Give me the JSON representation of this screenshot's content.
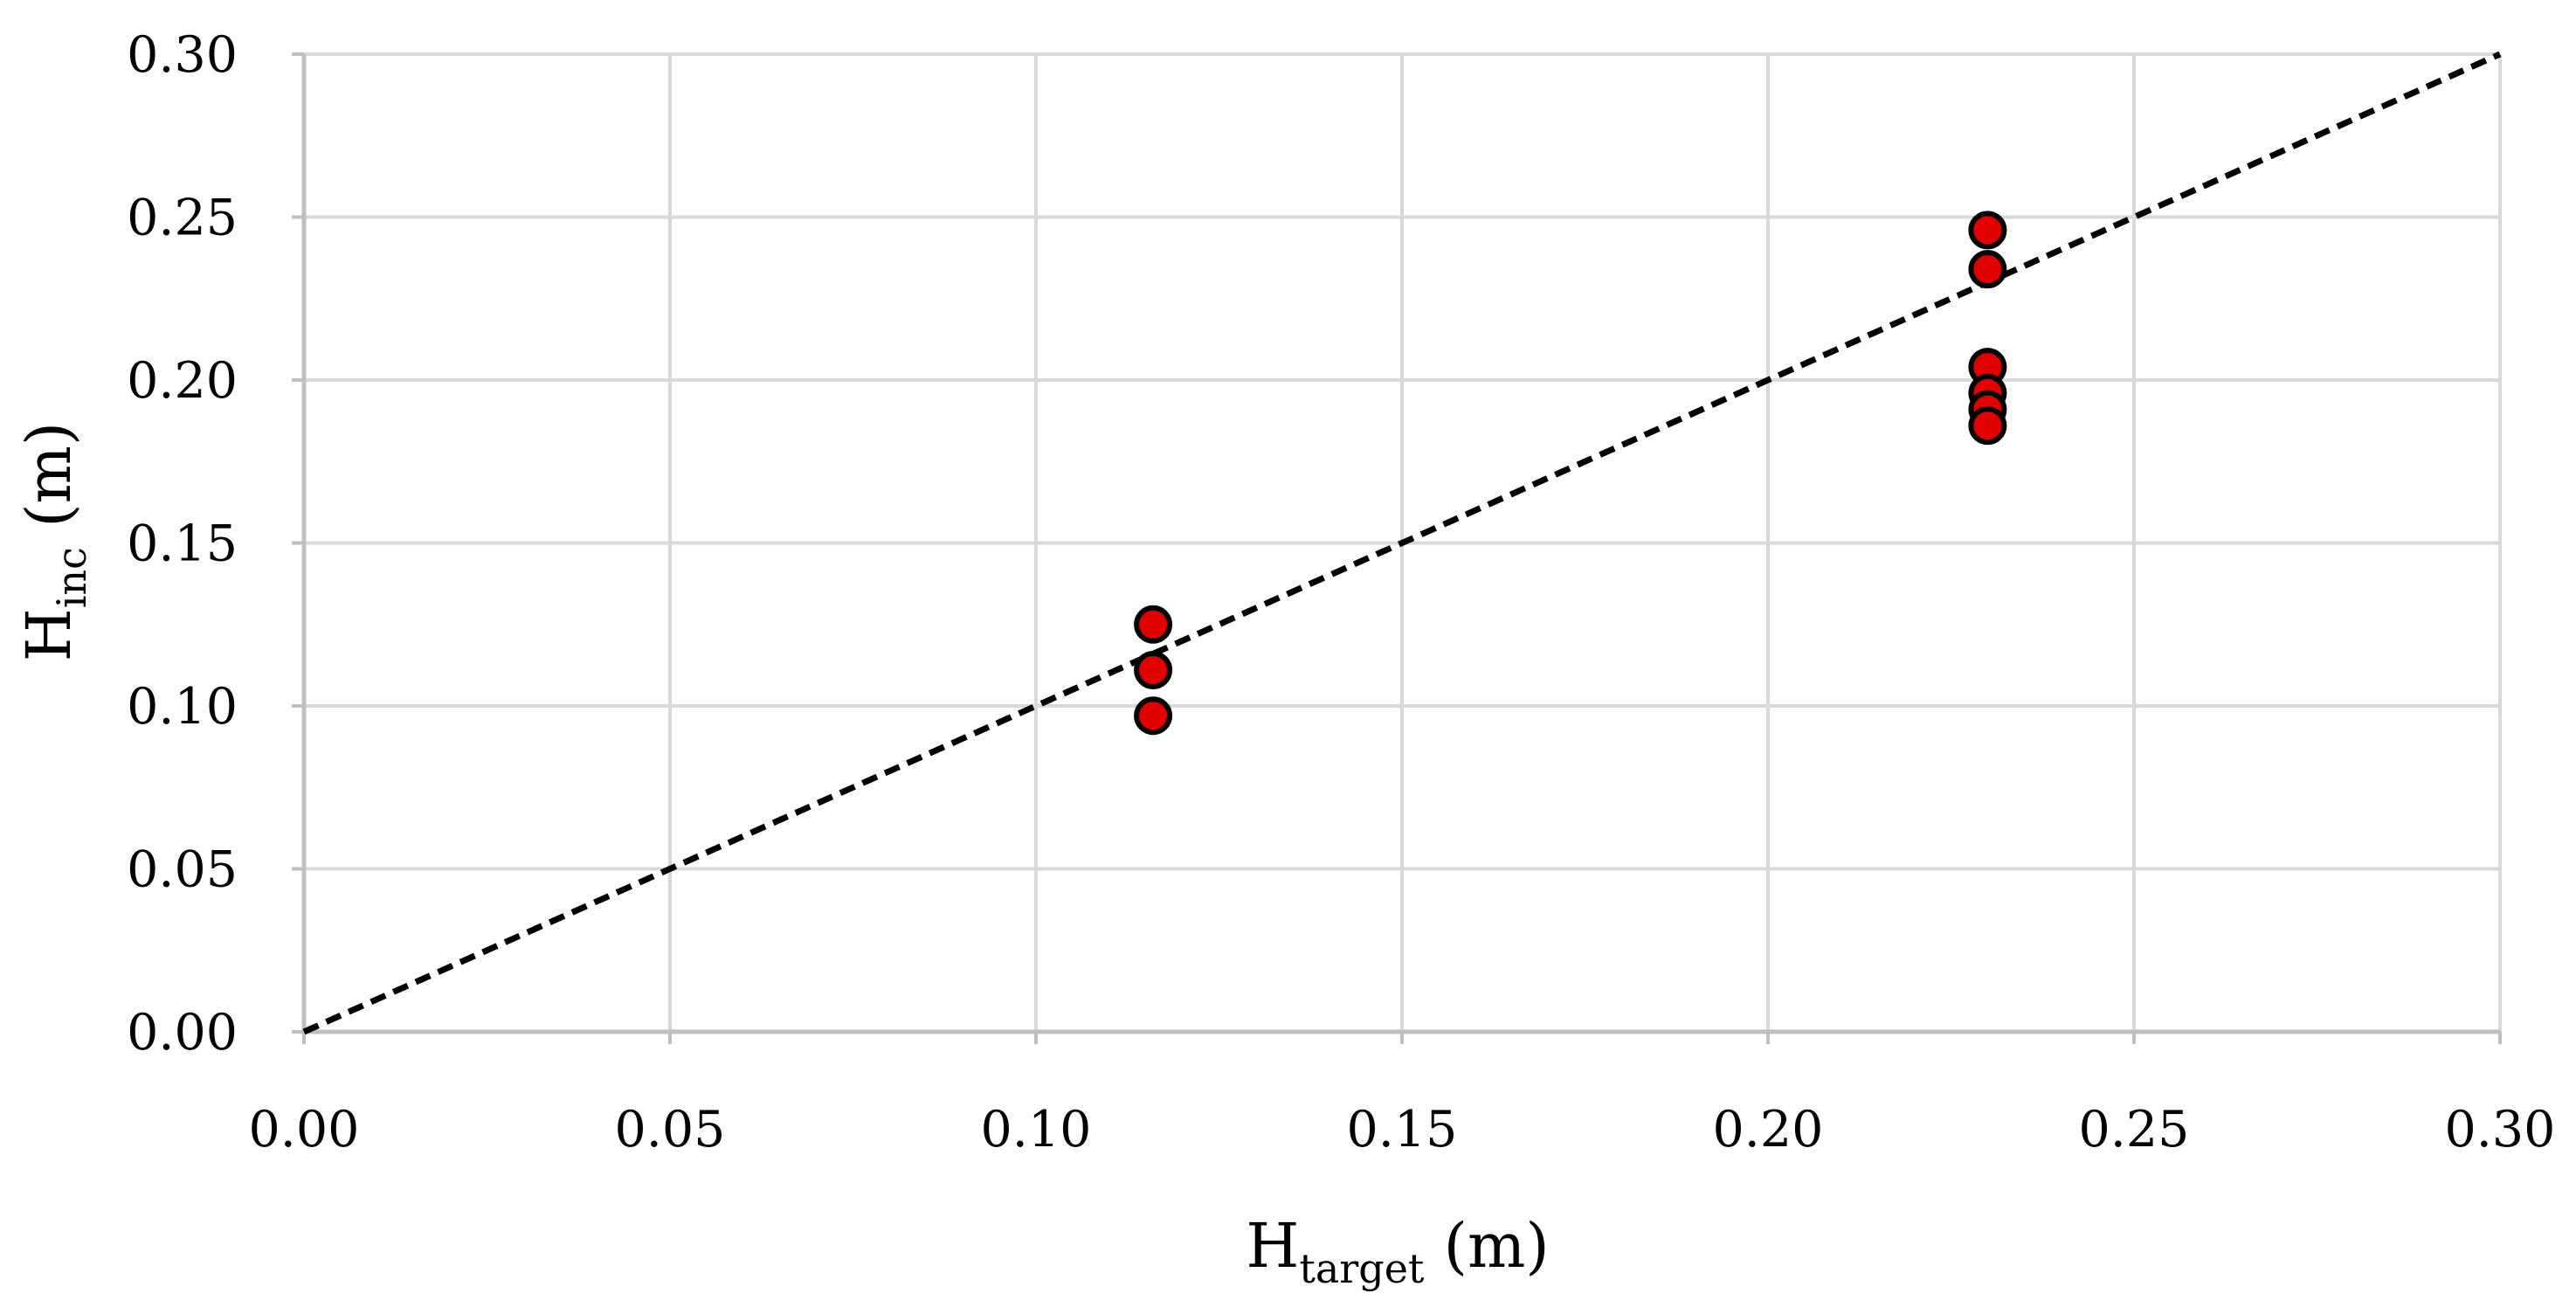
{
  "chart_data": {
    "type": "scatter",
    "title": "",
    "xlabel": {
      "main": "H",
      "sub": "target",
      "unit": " (m)"
    },
    "ylabel": {
      "main": "H",
      "sub": "inc",
      "unit": " (m)"
    },
    "xlim": [
      0,
      0.3
    ],
    "ylim": [
      0,
      0.3
    ],
    "x_ticks": [
      "0.00",
      "0.05",
      "0.10",
      "0.15",
      "0.20",
      "0.25",
      "0.30"
    ],
    "y_ticks": [
      "0.00",
      "0.05",
      "0.10",
      "0.15",
      "0.20",
      "0.25",
      "0.30"
    ],
    "grid": true,
    "reference_line": {
      "x": [
        0,
        0.3
      ],
      "y": [
        0,
        0.3
      ],
      "style": "dashed",
      "color": "#000000"
    },
    "points": [
      {
        "x": 0.116,
        "y": 0.125
      },
      {
        "x": 0.116,
        "y": 0.111
      },
      {
        "x": 0.116,
        "y": 0.097
      },
      {
        "x": 0.23,
        "y": 0.246
      },
      {
        "x": 0.23,
        "y": 0.234
      },
      {
        "x": 0.23,
        "y": 0.204
      },
      {
        "x": 0.23,
        "y": 0.196
      },
      {
        "x": 0.23,
        "y": 0.191
      },
      {
        "x": 0.23,
        "y": 0.186
      }
    ],
    "colors": {
      "marker_fill": "#e00000",
      "marker_edge": "#000000",
      "grid": "#d9d9d9",
      "axis": "#bfbfbf"
    }
  }
}
